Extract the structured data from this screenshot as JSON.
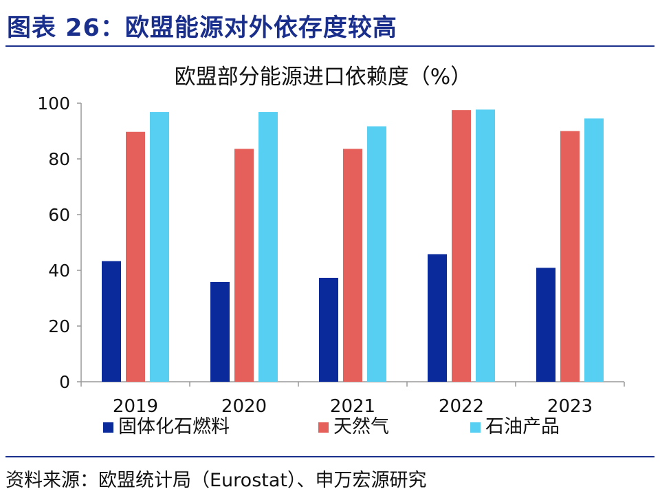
{
  "header": {
    "title": "图表 26：欧盟能源对外依存度较高"
  },
  "footer": {
    "source": "资料来源：欧盟统计局（Eurostat）、申万宏源研究"
  },
  "chart_data": {
    "type": "bar",
    "title": "欧盟部分能源进口依赖度（%）",
    "xlabel": "",
    "ylabel": "",
    "ylim": [
      0,
      100
    ],
    "yticks": [
      0,
      20,
      40,
      60,
      80,
      100
    ],
    "grid": false,
    "legend_position": "bottom",
    "categories": [
      "2019",
      "2020",
      "2021",
      "2022",
      "2023"
    ],
    "series": [
      {
        "name": "固体化石燃料",
        "color": "#0a2a9c",
        "values": [
          43.3,
          35.8,
          37.3,
          45.8,
          40.9
        ]
      },
      {
        "name": "天然气",
        "color": "#e5605a",
        "values": [
          89.7,
          83.6,
          83.6,
          97.5,
          90.0
        ]
      },
      {
        "name": "石油产品",
        "color": "#57cff2",
        "values": [
          96.8,
          96.8,
          91.7,
          97.7,
          94.5
        ]
      }
    ]
  }
}
